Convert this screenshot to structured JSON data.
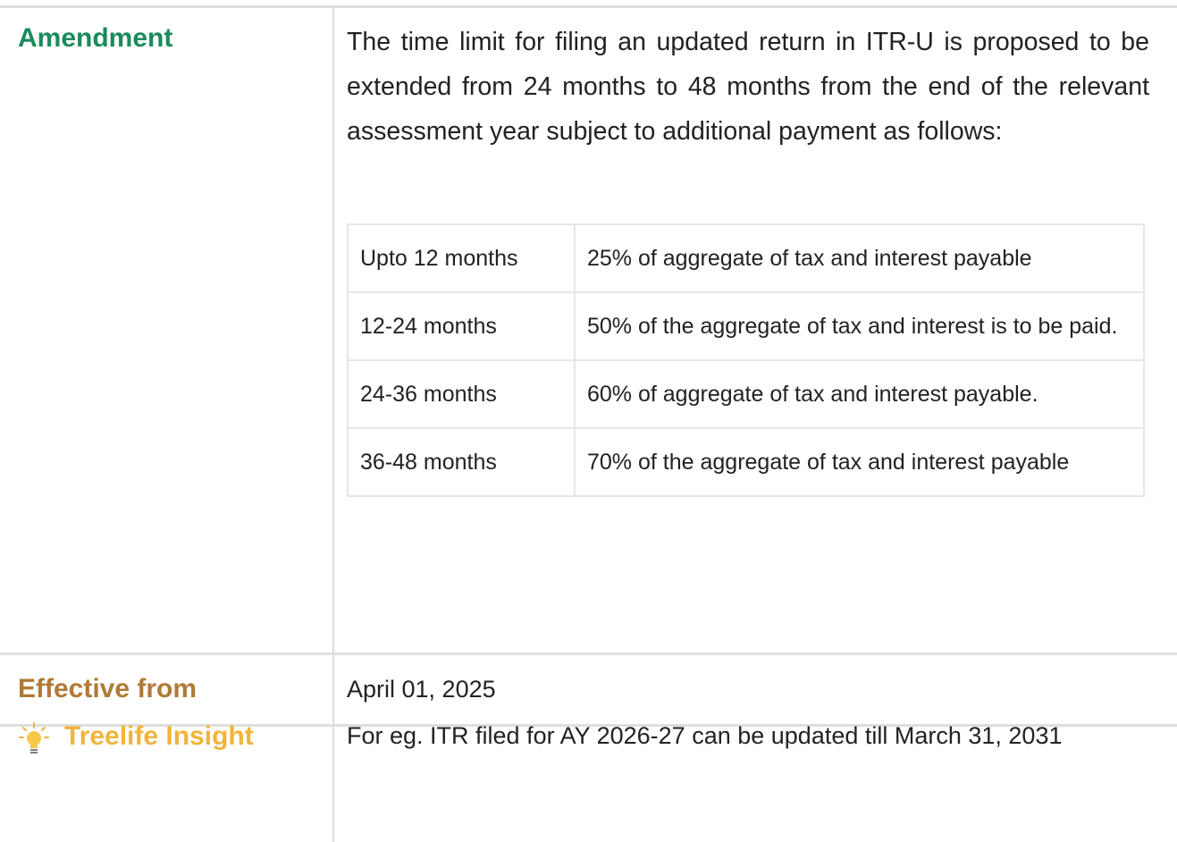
{
  "amendment": {
    "label": "Amendment",
    "text": "The time limit for filing an updated return in ITR-U is proposed to be extended from 24 months to 48 months from the end of the relevant assessment year subject to additional payment as follows:",
    "table": {
      "rows": [
        [
          "Upto 12 months",
          "25% of aggregate of tax and interest payable"
        ],
        [
          "12-24 months",
          "50% of the aggregate of tax and interest is to be paid."
        ],
        [
          "24-36 months",
          "60% of aggregate of tax and interest payable."
        ],
        [
          "36-48 months",
          "70% of the aggregate of tax and interest payable"
        ]
      ]
    }
  },
  "effective": {
    "label": "Effective from",
    "text": "April 01, 2025"
  },
  "insight": {
    "label": "Treelife Insight",
    "text": "For eg. ITR filed for AY 2026-27 can be updated till March 31, 2031"
  }
}
